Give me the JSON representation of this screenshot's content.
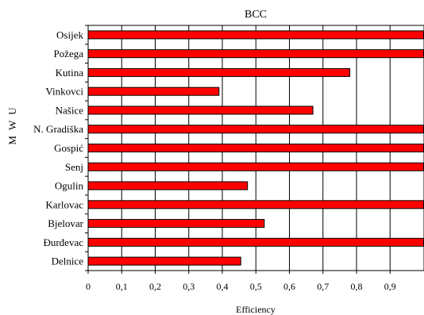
{
  "chart_data": {
    "type": "bar",
    "orientation": "horizontal",
    "title": "BCC",
    "xlabel": "Efficiency",
    "ylabel": "M W U",
    "categories": [
      "Osijek",
      "Požega",
      "Kutina",
      "Vinkovci",
      "Našice",
      "N. Gradiška",
      "Gospić",
      "Senj",
      "Ogulin",
      "Karlovac",
      "Bjelovar",
      "Đurđevac",
      "Delnice"
    ],
    "values": [
      1,
      1,
      0.78,
      0.39,
      0.67,
      1,
      1,
      1,
      0.475,
      1,
      0.525,
      1,
      0.455
    ],
    "xlim": [
      0,
      1
    ],
    "xticks": [
      "0",
      "0,1",
      "0,2",
      "0,3",
      "0,4",
      "0,5",
      "0,6",
      "0,7",
      "0,8",
      "0,9"
    ],
    "xtick_values": [
      0,
      0.1,
      0.2,
      0.3,
      0.4,
      0.5,
      0.6,
      0.7,
      0.8,
      0.9
    ],
    "grid": "vertical",
    "legend": "none",
    "bar_color": "#ff0000",
    "bar_edge_color": "#000000"
  }
}
